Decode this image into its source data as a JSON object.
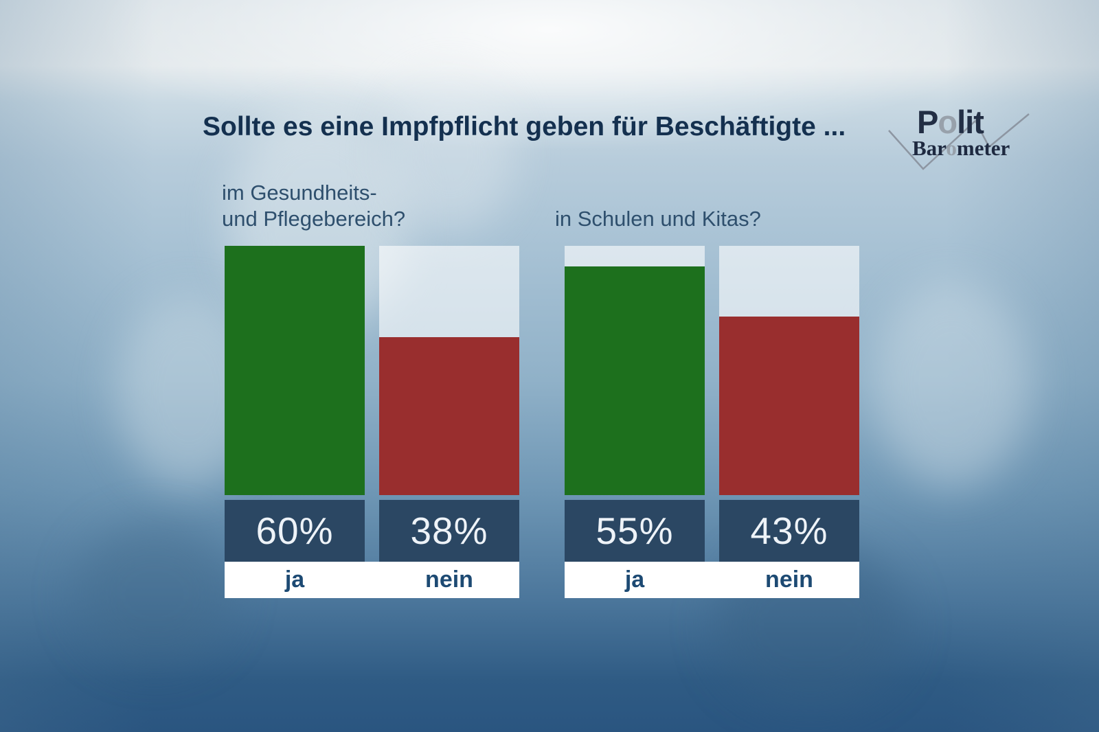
{
  "header": {
    "title": "Sollte es eine Impfpflicht geben für Beschäftigte ...",
    "title_color": "#14304f"
  },
  "logo": {
    "name": "Politbarometer",
    "polit_pre": "P",
    "polit_o": "o",
    "polit_post": "lit",
    "baro_pre": "Bar",
    "baro_o": "o",
    "baro_post": "meter",
    "dark_color": "#222e44",
    "gray_color": "#98a1ab",
    "line_color": "#8d96a2"
  },
  "chart_data": {
    "type": "bar",
    "title": "Sollte es eine Impfpflicht geben für Beschäftigte ...",
    "unit": "%",
    "scale_max": 60,
    "categories": [
      "ja",
      "nein"
    ],
    "colors": {
      "ja": "#1d701d",
      "nein": "#992e2e"
    },
    "value_band_color": "#2b4763",
    "track_color": "rgba(255,255,255,0.6)",
    "groups": [
      {
        "label": "im Gesundheits- und Pflegebereich?",
        "label_lines": [
          "im Gesundheits-",
          "und Pflegebereich?"
        ],
        "values": [
          60,
          38
        ],
        "value_labels": [
          "60%",
          "38%"
        ]
      },
      {
        "label": "in Schulen und Kitas?",
        "label_lines": [
          "in Schulen und Kitas?"
        ],
        "values": [
          55,
          43
        ],
        "value_labels": [
          "55%",
          "43%"
        ]
      }
    ]
  }
}
